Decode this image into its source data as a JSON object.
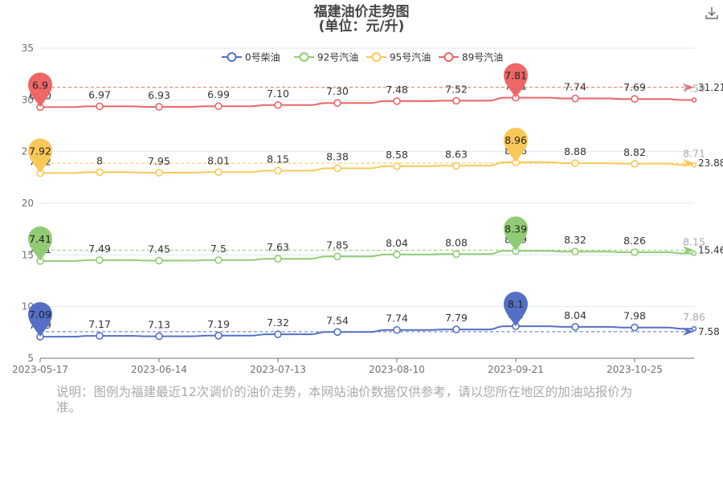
{
  "toolbox": {
    "download_icon": "download-icon"
  },
  "note": "说明：图例为福建最近12次调价的油价走势，本网站油价数据仅供参考，请以您所在地区的加油站报价为准。",
  "chart_data": {
    "type": "line",
    "title": "福建油价走势图",
    "subtitle": "(单位：元/升)",
    "legend_position": "top-right",
    "x_tick_labels": [
      "2023-05-17",
      "2023-06-14",
      "2023-07-13",
      "2023-08-10",
      "2023-09-21",
      "2023-10-25"
    ],
    "y_axis": {
      "min": 5,
      "max": 35,
      "ticks": [
        5,
        10,
        15,
        20,
        25,
        30,
        35
      ],
      "gridlines": true
    },
    "series": [
      {
        "name": "0号柴油",
        "color": "#5470c6",
        "offset": 0,
        "labels": [
          "7.09",
          "7.17",
          "7.13",
          "7.19",
          "7.32",
          "7.54",
          "7.74",
          "7.79",
          "8.1",
          "8.04",
          "7.98",
          "7.86"
        ],
        "values": [
          7.09,
          7.17,
          7.13,
          7.19,
          7.32,
          7.54,
          7.74,
          7.79,
          8.1,
          8.04,
          7.98,
          7.86
        ],
        "min_label": "7.09",
        "max_label": "8.1",
        "average": "7.58"
      },
      {
        "name": "92号汽油",
        "color": "#91cc75",
        "offset": 7,
        "labels": [
          "7.41",
          "7.49",
          "7.45",
          "7.5",
          "7.63",
          "7.85",
          "8.04",
          "8.08",
          "8.39",
          "8.32",
          "8.26",
          "8.15"
        ],
        "values": [
          7.41,
          7.49,
          7.45,
          7.5,
          7.63,
          7.85,
          8.04,
          8.08,
          8.39,
          8.32,
          8.26,
          8.15
        ],
        "min_label": "7.41",
        "max_label": "8.39",
        "average": "15.46"
      },
      {
        "name": "95号汽油",
        "color": "#fac858",
        "offset": 15,
        "labels": [
          "7.92",
          "8",
          "7.95",
          "8.01",
          "8.15",
          "8.38",
          "8.58",
          "8.63",
          "8.96",
          "8.88",
          "8.82",
          "8.71"
        ],
        "values": [
          7.92,
          8.0,
          7.95,
          8.01,
          8.15,
          8.38,
          8.58,
          8.63,
          8.96,
          8.88,
          8.82,
          8.71
        ],
        "min_label": "7.92",
        "max_label": "8.96",
        "average": "23.88"
      },
      {
        "name": "89号汽油",
        "color": "#ee6666",
        "offset": 22.4,
        "labels": [
          "6.90",
          "6.97",
          "6.93",
          "6.99",
          "7.10",
          "7.30",
          "7.48",
          "7.52",
          "7.81",
          "7.74",
          "7.69",
          "7.59"
        ],
        "values": [
          6.9,
          6.97,
          6.93,
          6.99,
          7.1,
          7.3,
          7.48,
          7.52,
          7.81,
          7.74,
          7.69,
          7.59
        ],
        "min_label": "6.9",
        "max_label": "7.81",
        "average": "31.21"
      }
    ]
  }
}
